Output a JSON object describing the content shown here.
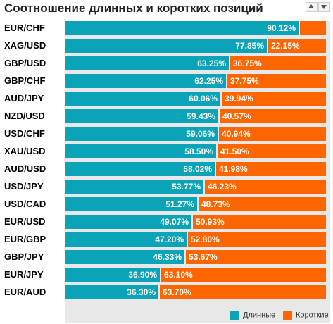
{
  "title": "Соотношение длинных и коротких позиций",
  "colors": {
    "long": "#0aa3b8",
    "short": "#ff6600"
  },
  "legend": {
    "long_label": "Длинные",
    "short_label": "Короткие"
  },
  "chart_data": {
    "type": "bar",
    "stacked": true,
    "orientation": "horizontal",
    "title": "Соотношение длинных и коротких позиций",
    "categories": [
      "EUR/CHF",
      "XAG/USD",
      "GBP/USD",
      "GBP/CHF",
      "AUD/JPY",
      "NZD/USD",
      "USD/CHF",
      "XAU/USD",
      "AUD/USD",
      "USD/JPY",
      "USD/CAD",
      "EUR/USD",
      "EUR/GBP",
      "GBP/JPY",
      "EUR/JPY",
      "EUR/AUD"
    ],
    "series": [
      {
        "name": "Длинные",
        "values": [
          90.12,
          77.85,
          63.25,
          62.25,
          60.06,
          59.43,
          59.06,
          58.5,
          58.02,
          53.77,
          51.27,
          49.07,
          47.2,
          46.33,
          36.9,
          36.3
        ]
      },
      {
        "name": "Короткие",
        "values": [
          9.88,
          22.15,
          36.75,
          37.75,
          39.94,
          40.57,
          40.94,
          41.5,
          41.98,
          46.23,
          48.73,
          50.93,
          52.8,
          53.67,
          63.1,
          63.7
        ]
      }
    ],
    "labels_long": [
      "90.12%",
      "77.85%",
      "63.25%",
      "62.25%",
      "60.06%",
      "59.43%",
      "59.06%",
      "58.50%",
      "58.02%",
      "53.77%",
      "51.27%",
      "49.07%",
      "47.20%",
      "46.33%",
      "36.90%",
      "36.30%"
    ],
    "labels_short": [
      "",
      "22.15%",
      "36.75%",
      "37.75%",
      "39.94%",
      "40.57%",
      "40.94%",
      "41.50%",
      "41.98%",
      "46.23%",
      "48.73%",
      "50.93%",
      "52.80%",
      "53.67%",
      "63.10%",
      "63.70%"
    ],
    "xlim": [
      0,
      100
    ],
    "legend_position": "bottom-right"
  }
}
